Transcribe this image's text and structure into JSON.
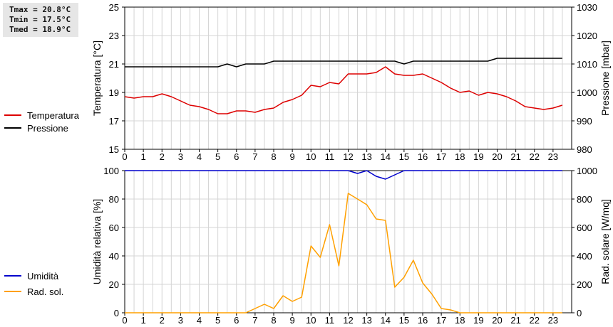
{
  "stats": {
    "tmax": "Tmax = 20.8°C",
    "tmin": "Tmin = 17.5°C",
    "tmed": "Tmed = 18.9°C"
  },
  "chart_data": [
    {
      "type": "line",
      "title": "",
      "xlabel": "",
      "ylabel": "Temperatura [°C]",
      "y2label": "Pressione [mbar]",
      "xlim": [
        0,
        24
      ],
      "ylim": [
        15,
        25
      ],
      "y2lim": [
        980,
        1030
      ],
      "x_ticks": [
        0,
        1,
        2,
        3,
        4,
        5,
        6,
        7,
        8,
        9,
        10,
        11,
        12,
        13,
        14,
        15,
        16,
        17,
        18,
        19,
        20,
        21,
        22,
        23
      ],
      "y_ticks": [
        15,
        17,
        19,
        21,
        23,
        25
      ],
      "y2_ticks": [
        980,
        990,
        1000,
        1010,
        1020,
        1030
      ],
      "grid": true,
      "legend": "left",
      "series": [
        {
          "name": "Temperatura",
          "color": "#dd0000",
          "axis": "left",
          "x": [
            0,
            0.5,
            1,
            1.5,
            2,
            2.5,
            3,
            3.5,
            4,
            4.5,
            5,
            5.5,
            6,
            6.5,
            7,
            7.5,
            8,
            8.5,
            9,
            9.5,
            10,
            10.5,
            11,
            11.5,
            12,
            12.5,
            13,
            13.5,
            14,
            14.5,
            15,
            15.5,
            16,
            16.5,
            17,
            17.5,
            18,
            18.5,
            19,
            19.5,
            20,
            20.5,
            21,
            21.5,
            22,
            22.5,
            23,
            23.5
          ],
          "y": [
            18.7,
            18.6,
            18.7,
            18.7,
            18.9,
            18.7,
            18.4,
            18.1,
            18.0,
            17.8,
            17.5,
            17.5,
            17.7,
            17.7,
            17.6,
            17.8,
            17.9,
            18.3,
            18.5,
            18.8,
            19.5,
            19.4,
            19.7,
            19.6,
            20.3,
            20.3,
            20.3,
            20.4,
            20.8,
            20.3,
            20.2,
            20.2,
            20.3,
            20.0,
            19.7,
            19.3,
            19.0,
            19.1,
            18.8,
            19.0,
            18.9,
            18.7,
            18.4,
            18.0,
            17.9,
            17.8,
            17.9,
            18.1
          ]
        },
        {
          "name": "Pressione",
          "color": "#000000",
          "axis": "right",
          "x": [
            0,
            0.5,
            1,
            1.5,
            2,
            2.5,
            3,
            3.5,
            4,
            4.5,
            5,
            5.5,
            6,
            6.5,
            7,
            7.5,
            8,
            8.5,
            9,
            9.5,
            10,
            10.5,
            11,
            11.5,
            12,
            12.5,
            13,
            13.5,
            14,
            14.5,
            15,
            15.5,
            16,
            16.5,
            17,
            17.5,
            18,
            18.5,
            19,
            19.5,
            20,
            20.5,
            21,
            21.5,
            22,
            22.5,
            23,
            23.5
          ],
          "y": [
            1009,
            1009,
            1009,
            1009,
            1009,
            1009,
            1009,
            1009,
            1009,
            1009,
            1009,
            1010,
            1009,
            1010,
            1010,
            1010,
            1011,
            1011,
            1011,
            1011,
            1011,
            1011,
            1011,
            1011,
            1011,
            1011,
            1011,
            1011,
            1011,
            1011,
            1010,
            1011,
            1011,
            1011,
            1011,
            1011,
            1011,
            1011,
            1011,
            1011,
            1012,
            1012,
            1012,
            1012,
            1012,
            1012,
            1012,
            1012
          ]
        }
      ]
    },
    {
      "type": "line",
      "title": "",
      "xlabel": "",
      "ylabel": "Umidità relativa [%]",
      "y2label": "Rad. solare [W/mq]",
      "xlim": [
        0,
        24
      ],
      "ylim": [
        0,
        100
      ],
      "y2lim": [
        0,
        1000
      ],
      "x_ticks": [
        0,
        1,
        2,
        3,
        4,
        5,
        6,
        7,
        8,
        9,
        10,
        11,
        12,
        13,
        14,
        15,
        16,
        17,
        18,
        19,
        20,
        21,
        22,
        23
      ],
      "y_ticks": [
        0,
        20,
        40,
        60,
        80,
        100
      ],
      "y2_ticks": [
        0,
        200,
        400,
        600,
        800,
        1000
      ],
      "grid": true,
      "legend": "left",
      "series": [
        {
          "name": "Umidità",
          "color": "#0000cc",
          "axis": "left",
          "x": [
            0,
            0.5,
            1,
            1.5,
            2,
            2.5,
            3,
            3.5,
            4,
            4.5,
            5,
            5.5,
            6,
            6.5,
            7,
            7.5,
            8,
            8.5,
            9,
            9.5,
            10,
            10.5,
            11,
            11.5,
            12,
            12.5,
            13,
            13.5,
            14,
            14.5,
            15,
            15.5,
            16,
            16.5,
            17,
            17.5,
            18,
            18.5,
            19,
            19.5,
            20,
            20.5,
            21,
            21.5,
            22,
            22.5,
            23,
            23.5
          ],
          "y": [
            100,
            100,
            100,
            100,
            100,
            100,
            100,
            100,
            100,
            100,
            100,
            100,
            100,
            100,
            100,
            100,
            100,
            100,
            100,
            100,
            100,
            100,
            100,
            100,
            100,
            98,
            100,
            96,
            94,
            97,
            100,
            100,
            100,
            100,
            100,
            100,
            100,
            100,
            100,
            100,
            100,
            100,
            100,
            100,
            100,
            100,
            100,
            100
          ]
        },
        {
          "name": "Rad. sol.",
          "color": "#ffa000",
          "axis": "right",
          "x": [
            0,
            0.5,
            1,
            1.5,
            2,
            2.5,
            3,
            3.5,
            4,
            4.5,
            5,
            5.5,
            6,
            6.5,
            7,
            7.5,
            8,
            8.5,
            9,
            9.5,
            10,
            10.5,
            11,
            11.5,
            12,
            12.5,
            13,
            13.5,
            14,
            14.5,
            15,
            15.5,
            16,
            16.5,
            17,
            17.5,
            18,
            18.5,
            19,
            19.5,
            20,
            20.5,
            21,
            21.5,
            22,
            22.5,
            23,
            23.5
          ],
          "y": [
            0,
            0,
            0,
            0,
            0,
            0,
            0,
            0,
            0,
            0,
            0,
            0,
            0,
            0,
            30,
            60,
            30,
            120,
            80,
            110,
            470,
            390,
            620,
            330,
            840,
            800,
            760,
            660,
            650,
            180,
            250,
            370,
            210,
            130,
            30,
            20,
            0,
            0,
            0,
            0,
            0,
            0,
            0,
            0,
            0,
            0,
            0,
            0
          ]
        }
      ]
    }
  ]
}
